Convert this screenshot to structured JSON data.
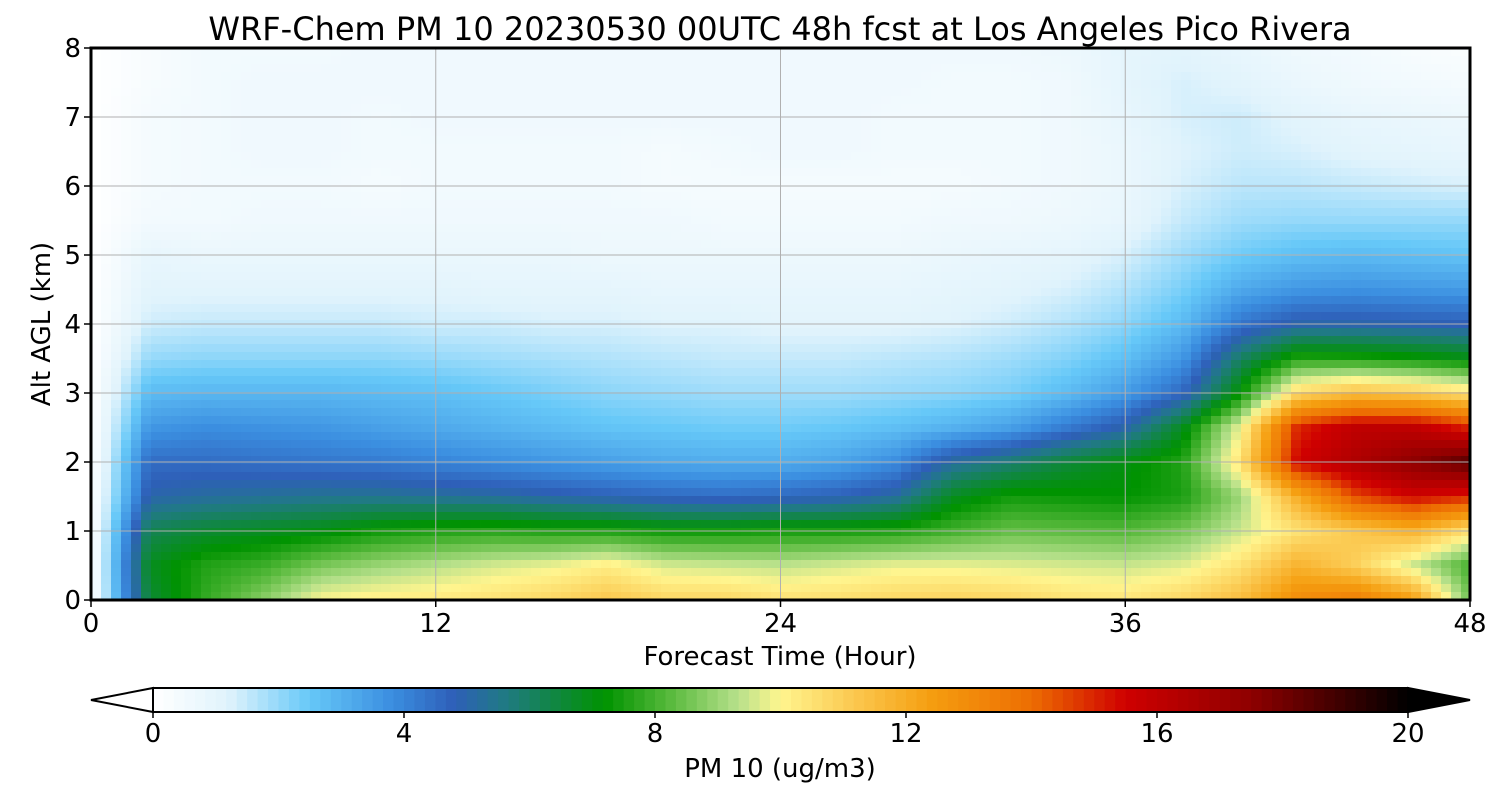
{
  "chart_data": {
    "type": "heatmap",
    "title": "WRF-Chem PM 10  20230530 00UTC 48h fcst at Los Angeles Pico Rivera",
    "xlabel": "Forecast Time (Hour)",
    "ylabel": "Alt AGL (km)",
    "xlim": [
      0,
      48
    ],
    "ylim": [
      0,
      8
    ],
    "x_ticks": [
      "0",
      "12",
      "24",
      "36",
      "48"
    ],
    "y_ticks": [
      "0",
      "1",
      "2",
      "3",
      "4",
      "5",
      "6",
      "7",
      "8"
    ],
    "grid": true,
    "x": [
      0,
      2,
      4,
      6,
      8,
      10,
      12,
      14,
      16,
      18,
      20,
      22,
      24,
      26,
      28,
      30,
      32,
      34,
      36,
      38,
      40,
      42,
      44,
      46,
      48
    ],
    "y": [
      0,
      0.5,
      1,
      1.5,
      2,
      2.5,
      3,
      3.5,
      4,
      4.5,
      5,
      5.5,
      6,
      6.5,
      7,
      7.5,
      8
    ],
    "z": [
      [
        0.0,
        6.5,
        7.8,
        8.8,
        10.0,
        10.2,
        10.3,
        10.5,
        10.8,
        11.2,
        10.8,
        10.8,
        10.5,
        10.6,
        10.8,
        10.9,
        10.8,
        10.5,
        10.4,
        10.8,
        11.5,
        13.0,
        13.5,
        12.5,
        8.5
      ],
      [
        0.0,
        6.8,
        7.6,
        7.9,
        8.6,
        9.0,
        9.3,
        9.6,
        9.8,
        10.2,
        9.6,
        9.5,
        9.4,
        9.6,
        9.8,
        9.8,
        9.7,
        9.6,
        9.5,
        9.7,
        10.5,
        11.8,
        11.0,
        9.5,
        8.0
      ],
      [
        0.0,
        6.2,
        6.6,
        6.8,
        7.0,
        7.4,
        7.6,
        7.7,
        7.6,
        7.6,
        7.4,
        7.4,
        7.5,
        7.5,
        7.6,
        8.0,
        8.4,
        8.3,
        8.2,
        8.6,
        9.5,
        10.5,
        11.2,
        11.8,
        10.5
      ],
      [
        0.0,
        5.0,
        5.2,
        5.3,
        5.4,
        5.4,
        5.3,
        5.2,
        5.0,
        4.8,
        4.6,
        4.5,
        4.6,
        4.8,
        5.2,
        6.8,
        7.4,
        7.3,
        7.2,
        7.5,
        9.0,
        12.0,
        14.5,
        15.5,
        15.0
      ],
      [
        0.0,
        4.5,
        4.5,
        4.4,
        4.3,
        4.2,
        4.0,
        3.8,
        3.6,
        3.4,
        3.2,
        3.1,
        3.1,
        3.3,
        3.8,
        5.2,
        5.8,
        6.5,
        7.0,
        7.6,
        10.5,
        15.5,
        16.5,
        17.5,
        18.5
      ],
      [
        0.0,
        3.6,
        3.8,
        3.7,
        3.6,
        3.4,
        3.2,
        3.0,
        2.8,
        2.6,
        2.5,
        2.4,
        2.4,
        2.5,
        2.7,
        3.0,
        3.4,
        4.2,
        5.0,
        6.8,
        9.8,
        15.0,
        16.0,
        16.0,
        15.0
      ],
      [
        0.0,
        2.8,
        2.9,
        2.9,
        2.9,
        2.8,
        2.7,
        2.5,
        2.3,
        2.1,
        2.0,
        1.9,
        1.9,
        1.9,
        2.0,
        2.1,
        2.3,
        2.8,
        3.5,
        4.6,
        7.2,
        10.8,
        11.5,
        11.2,
        10.5
      ],
      [
        0.0,
        2.0,
        2.1,
        2.1,
        2.1,
        2.1,
        2.0,
        1.9,
        1.8,
        1.7,
        1.6,
        1.5,
        1.5,
        1.5,
        1.6,
        1.7,
        1.9,
        2.2,
        2.7,
        3.6,
        6.0,
        7.6,
        7.5,
        7.3,
        7.0
      ],
      [
        0.0,
        1.4,
        1.5,
        1.5,
        1.5,
        1.5,
        1.4,
        1.4,
        1.3,
        1.3,
        1.2,
        1.2,
        1.1,
        1.1,
        1.1,
        1.2,
        1.4,
        1.7,
        2.1,
        2.8,
        4.3,
        5.0,
        5.0,
        4.9,
        4.8
      ],
      [
        0.0,
        1.1,
        1.1,
        1.1,
        1.1,
        1.1,
        1.1,
        1.0,
        1.0,
        1.0,
        0.9,
        0.9,
        0.9,
        0.9,
        0.9,
        1.0,
        1.1,
        1.3,
        1.7,
        2.3,
        3.2,
        3.6,
        3.7,
        3.6,
        3.5
      ],
      [
        0.0,
        0.9,
        0.8,
        0.8,
        0.8,
        0.8,
        0.8,
        0.8,
        0.8,
        0.7,
        0.7,
        0.7,
        0.7,
        0.7,
        0.7,
        0.8,
        0.9,
        1.0,
        1.3,
        1.9,
        2.4,
        2.7,
        2.8,
        2.7,
        2.6
      ],
      [
        0.0,
        0.5,
        0.5,
        0.6,
        0.6,
        0.6,
        0.6,
        0.6,
        0.6,
        0.6,
        0.6,
        0.5,
        0.5,
        0.5,
        0.5,
        0.6,
        0.6,
        0.7,
        0.9,
        1.5,
        1.9,
        2.0,
        2.0,
        2.0,
        2.0
      ],
      [
        0.0,
        0.4,
        0.5,
        0.5,
        0.5,
        0.4,
        0.5,
        0.5,
        0.5,
        0.5,
        0.4,
        0.4,
        0.4,
        0.4,
        0.4,
        0.4,
        0.5,
        0.6,
        0.8,
        1.3,
        1.6,
        1.6,
        1.5,
        1.4,
        1.3
      ],
      [
        0.0,
        0.4,
        0.5,
        0.6,
        0.6,
        0.5,
        0.5,
        0.5,
        0.5,
        0.5,
        0.4,
        0.5,
        0.6,
        0.6,
        0.5,
        0.5,
        0.5,
        0.6,
        0.8,
        1.2,
        1.4,
        1.3,
        1.1,
        1.0,
        0.9
      ],
      [
        0.0,
        0.4,
        0.5,
        0.6,
        0.6,
        0.5,
        0.6,
        0.6,
        0.6,
        0.6,
        0.6,
        0.6,
        0.6,
        0.6,
        0.5,
        0.5,
        0.5,
        0.6,
        0.9,
        1.3,
        1.4,
        1.1,
        0.9,
        0.8,
        0.7
      ],
      [
        0.0,
        0.3,
        0.5,
        0.6,
        0.6,
        0.6,
        0.6,
        0.6,
        0.6,
        0.6,
        0.6,
        0.6,
        0.6,
        0.6,
        0.6,
        0.5,
        0.5,
        0.6,
        1.0,
        1.3,
        1.1,
        0.8,
        0.6,
        0.5,
        0.4
      ],
      [
        0.0,
        0.3,
        0.5,
        0.5,
        0.5,
        0.6,
        0.6,
        0.6,
        0.6,
        0.6,
        0.6,
        0.6,
        0.6,
        0.6,
        0.6,
        0.6,
        0.6,
        0.7,
        1.0,
        1.1,
        0.9,
        0.6,
        0.5,
        0.3,
        0.2
      ]
    ],
    "colorbar": {
      "label": "PM 10  (ug/m3)",
      "min": 0,
      "max": 20,
      "ticks": [
        "0",
        "4",
        "8",
        "12",
        "16",
        "20"
      ],
      "extend": "both",
      "stops": [
        {
          "v": 0,
          "c": "#ffffff"
        },
        {
          "v": 1.2,
          "c": "#e0f3fc"
        },
        {
          "v": 2.5,
          "c": "#66c8f8"
        },
        {
          "v": 3.8,
          "c": "#3b8ee0"
        },
        {
          "v": 4.8,
          "c": "#2e5fb8"
        },
        {
          "v": 5.6,
          "c": "#207a84"
        },
        {
          "v": 7.2,
          "c": "#009300"
        },
        {
          "v": 8.2,
          "c": "#55b83a"
        },
        {
          "v": 9.3,
          "c": "#b5e08a"
        },
        {
          "v": 10.0,
          "c": "#fff58f"
        },
        {
          "v": 11.2,
          "c": "#fbc74e"
        },
        {
          "v": 12.4,
          "c": "#f59e10"
        },
        {
          "v": 14.0,
          "c": "#ed6d02"
        },
        {
          "v": 15.5,
          "c": "#cf0000"
        },
        {
          "v": 17.5,
          "c": "#8e0000"
        },
        {
          "v": 20.0,
          "c": "#000000"
        }
      ]
    }
  }
}
